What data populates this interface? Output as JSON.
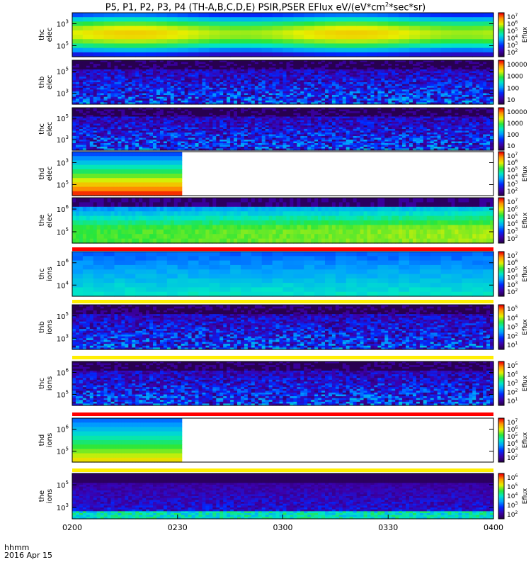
{
  "title": "P5, P1, P2, P3, P4 (TH-A,B,C,D,E) PSIR,PSER EFlux eV/(eV*cm",
  "title_sup": "2",
  "title_tail": "*sec*sr)",
  "footer": {
    "time_label": "hhmm",
    "date_label": "2016 Apr 15"
  },
  "chart_data": {
    "type": "heatmap",
    "x_ticks": [
      "0200",
      "0230",
      "0300",
      "0330",
      "0400"
    ],
    "x_range": [
      "0200",
      "0400"
    ],
    "y_scale": "log",
    "panels": [
      {
        "ylabel": [
          "thc",
          "elec"
        ],
        "y_ticks": [
          "10^3",
          "10^5"
        ],
        "colorbar_ticks": [
          "10^7",
          "10^6",
          "10^5",
          "10^4",
          "10^3",
          "10^2"
        ],
        "colorbar_label": "Eflux",
        "coverage": 1.0,
        "style": "smooth-high"
      },
      {
        "ylabel": [
          "thb",
          "elec"
        ],
        "y_ticks": [
          "10^5",
          "10^3"
        ],
        "colorbar_ticks": [
          "10000",
          "1000",
          "100",
          "10"
        ],
        "colorbar_label": "",
        "coverage": 1.0,
        "style": "noise"
      },
      {
        "ylabel": [
          "thc",
          "elec"
        ],
        "y_ticks": [
          "10^5",
          "10^3"
        ],
        "colorbar_ticks": [
          "10000",
          "1000",
          "100",
          "10"
        ],
        "colorbar_label": "",
        "coverage": 1.0,
        "style": "noise"
      },
      {
        "ylabel": [
          "thd",
          "elec"
        ],
        "y_ticks": [
          "10^3",
          "10^5"
        ],
        "colorbar_ticks": [
          "10^7",
          "10^6",
          "10^5",
          "10^4",
          "10^3",
          "10^2"
        ],
        "colorbar_label": "Eflux",
        "coverage": 0.26,
        "style": "hot-low"
      },
      {
        "ylabel": [
          "the",
          "elec"
        ],
        "y_ticks": [
          "10^6",
          "10^5"
        ],
        "colorbar_ticks": [
          "10^7",
          "10^6",
          "10^5",
          "10^4",
          "10^3",
          "10^2"
        ],
        "colorbar_label": "Eflux",
        "coverage": 1.0,
        "style": "mid-green"
      },
      {
        "ylabel": [
          "thc",
          "ions"
        ],
        "y_ticks": [
          "10^6",
          "10^4"
        ],
        "colorbar_ticks": [
          "10^7",
          "10^6",
          "10^5",
          "10^4",
          "10^3",
          "10^2"
        ],
        "colorbar_label": "Eflux",
        "coverage": 1.0,
        "style": "cool"
      },
      {
        "ylabel": [
          "thb",
          "ions"
        ],
        "y_ticks": [
          "10^5",
          "10^3"
        ],
        "colorbar_ticks": [
          "10^5",
          "10^4",
          "10^3",
          "10^2",
          "10^1"
        ],
        "colorbar_label": "Eflux",
        "coverage": 1.0,
        "style": "noise"
      },
      {
        "ylabel": [
          "thc",
          "ions"
        ],
        "y_ticks": [
          "10^6",
          "10^5"
        ],
        "colorbar_ticks": [
          "10^5",
          "10^4",
          "10^3",
          "10^2",
          "10^1"
        ],
        "colorbar_label": "Eflux",
        "coverage": 1.0,
        "style": "noise"
      },
      {
        "ylabel": [
          "thd",
          "ions"
        ],
        "y_ticks": [
          "10^6",
          "10^5"
        ],
        "colorbar_ticks": [
          "10^7",
          "10^6",
          "10^5",
          "10^4",
          "10^3",
          "10^2"
        ],
        "colorbar_label": "Eflux",
        "coverage": 0.26,
        "style": "mid-hot"
      },
      {
        "ylabel": [
          "the",
          "ions"
        ],
        "y_ticks": [
          "10^5",
          "10^3"
        ],
        "colorbar_ticks": [
          "10^6",
          "10^5",
          "10^4",
          "10^3",
          "10^2"
        ],
        "colorbar_label": "Eflux",
        "coverage": 1.0,
        "style": "noise-blue"
      }
    ],
    "flags": [
      {
        "after_panel": 4,
        "color": "#ff0000"
      },
      {
        "after_panel": 5,
        "color": "#ffee00"
      },
      {
        "after_panel": 6,
        "color": "#ffee00"
      },
      {
        "after_panel": 7,
        "color": "#ff0000"
      },
      {
        "after_panel": 8,
        "color": "#ffee00"
      }
    ],
    "grid": false,
    "legend": "colorbar-right"
  }
}
